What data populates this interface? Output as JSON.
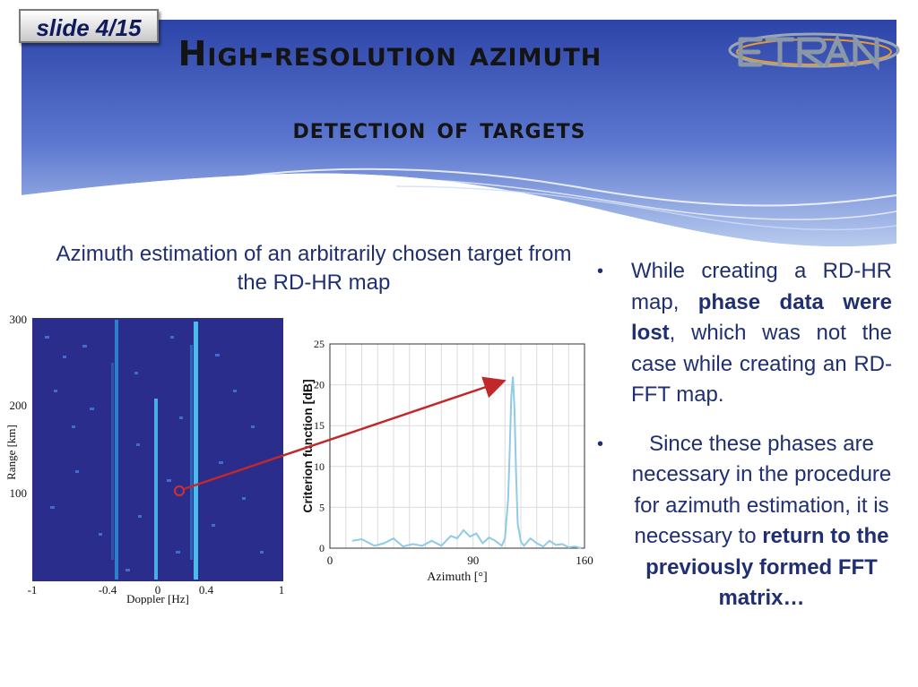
{
  "slide": {
    "badge": "slide 4/15",
    "title_line_1": "High-resolution azimuth",
    "title_line_2": "detection of targets",
    "logo_text": "ETRAN",
    "colors": {
      "header_blue": "#3a52b4",
      "text_navy": "#1f2f72",
      "arrow_red": "#c0282a",
      "map_bg": "#2a2d8c",
      "curve": "#8ecbe6"
    }
  },
  "figure": {
    "caption": "Azimuth estimation of an arbitrarily chosen target from the RD-HR map",
    "rd_map": {
      "ylabel": "Range [km]",
      "xlabel": "Doppler [Hz]",
      "y_ticks": [
        "300",
        "200",
        "100"
      ],
      "x_ticks": [
        "-1",
        "-0.4",
        "0",
        "0.4",
        "1"
      ]
    }
  },
  "chart_data": {
    "type": "line",
    "xlabel": "Azimuth [°]",
    "ylabel": "Criterion function [dB]",
    "xlim": [
      0,
      160
    ],
    "ylim": [
      0,
      25
    ],
    "x_ticks": [
      "0",
      "90",
      "160"
    ],
    "y_ticks": [
      "0",
      "5",
      "10",
      "15",
      "20",
      "25"
    ],
    "grid": true,
    "series": [
      {
        "x": [
          14,
          20,
          28,
          34,
          40,
          46,
          52,
          58,
          64,
          70,
          76,
          80,
          84,
          88,
          92,
          96,
          100,
          104,
          108,
          110,
          112,
          113,
          114,
          115,
          116,
          117,
          118,
          120,
          122,
          126,
          130,
          134,
          138,
          142,
          146,
          150,
          154,
          158
        ],
        "y": [
          0.9,
          1.1,
          0.3,
          0.6,
          1.2,
          0.2,
          0.5,
          0.3,
          0.9,
          0.3,
          1.5,
          1.2,
          2.2,
          1.4,
          1.8,
          0.6,
          1.3,
          0.9,
          0.3,
          1.2,
          6.0,
          12.0,
          18.5,
          21.0,
          17.0,
          9.0,
          3.0,
          0.8,
          0.3,
          1.2,
          0.6,
          0.2,
          0.9,
          0.4,
          0.5,
          0.1,
          0.2,
          0.0
        ]
      }
    ]
  },
  "bullets": [
    {
      "dot": "•",
      "parts": [
        {
          "text": "While creating a RD-HR map, ",
          "bold": false
        },
        {
          "text": "phase data were lost",
          "bold": true
        },
        {
          "text": ", which was not the case while creating an RD-FFT map.",
          "bold": false
        }
      ]
    },
    {
      "dot": "•",
      "parts": [
        {
          "text": "Since these phases are necessary in the procedure for azimuth estimation, it is necessary to ",
          "bold": false
        },
        {
          "text": "return to the previously formed FFT matrix…",
          "bold": true
        }
      ]
    }
  ]
}
